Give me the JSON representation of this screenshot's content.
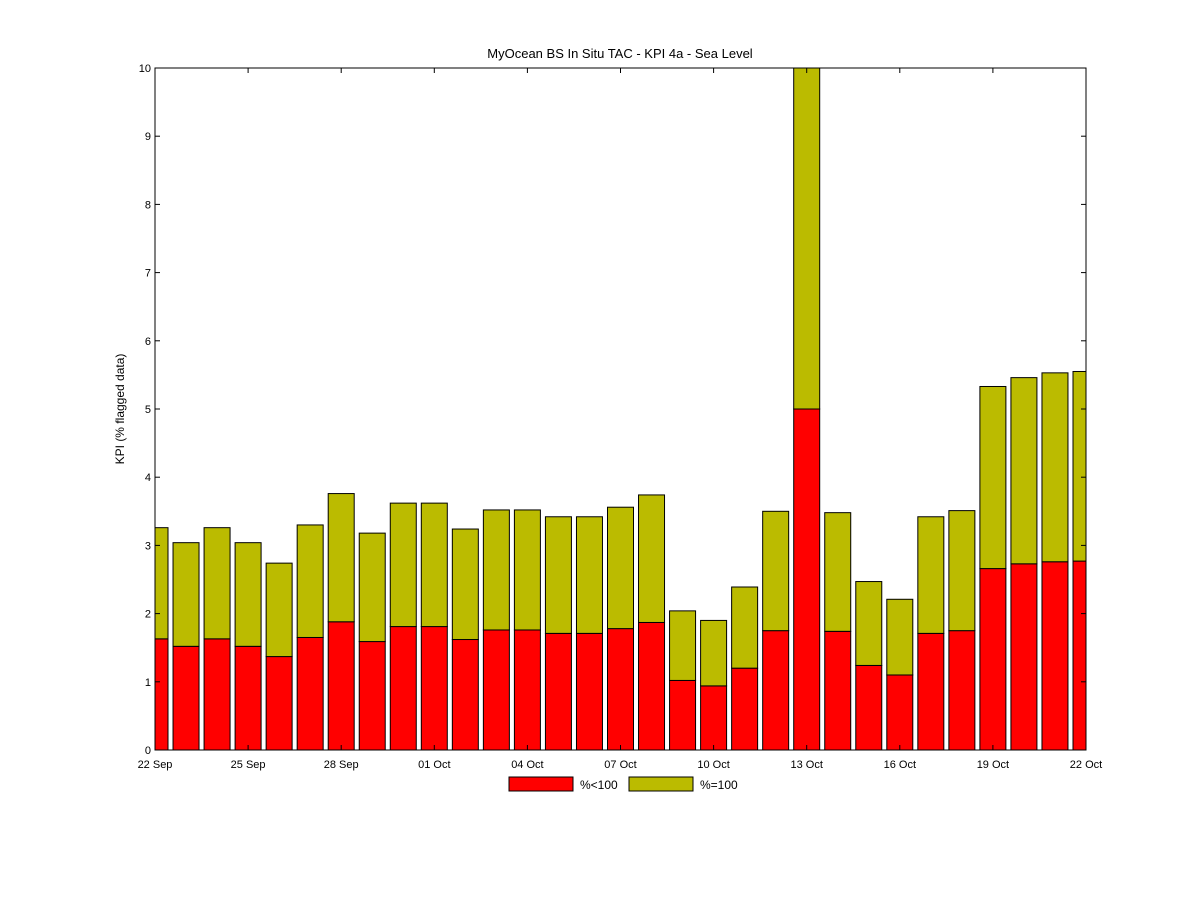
{
  "chart_data": {
    "type": "bar",
    "stacked": true,
    "title": "MyOcean  BS In Situ TAC - KPI 4a - Sea Level",
    "xlabel": "",
    "ylabel": "KPI (% flagged data)",
    "ylim": [
      0,
      10
    ],
    "yticks": [
      0,
      1,
      2,
      3,
      4,
      5,
      6,
      7,
      8,
      9,
      10
    ],
    "xlim": [
      "22 Sep",
      "22 Oct"
    ],
    "xticks": [
      "22 Sep",
      "25 Sep",
      "28 Sep",
      "01 Oct",
      "04 Oct",
      "07 Oct",
      "10 Oct",
      "13 Oct",
      "16 Oct",
      "19 Oct",
      "22 Oct"
    ],
    "grid": false,
    "legend_position": "bottom-center",
    "categories": [
      "22 Sep",
      "23 Sep",
      "24 Sep",
      "25 Sep",
      "26 Sep",
      "27 Sep",
      "28 Sep",
      "29 Sep",
      "30 Sep",
      "01 Oct",
      "02 Oct",
      "03 Oct",
      "04 Oct",
      "05 Oct",
      "06 Oct",
      "07 Oct",
      "08 Oct",
      "09 Oct",
      "10 Oct",
      "11 Oct",
      "12 Oct",
      "13 Oct",
      "14 Oct",
      "15 Oct",
      "16 Oct",
      "17 Oct",
      "18 Oct",
      "19 Oct",
      "20 Oct",
      "21 Oct",
      "22 Oct"
    ],
    "series": [
      {
        "name": "%<100",
        "color": "#ff0000",
        "values": [
          1.63,
          1.52,
          1.63,
          1.52,
          1.37,
          1.65,
          1.88,
          1.59,
          1.81,
          1.81,
          1.62,
          1.76,
          1.76,
          1.71,
          1.71,
          1.78,
          1.87,
          1.02,
          0.94,
          1.2,
          1.75,
          5.0,
          1.74,
          1.24,
          1.1,
          1.71,
          1.75,
          2.66,
          2.73,
          2.76,
          2.77
        ]
      },
      {
        "name": "%=100",
        "color": "#bbbb00",
        "values": [
          1.63,
          1.52,
          1.63,
          1.52,
          1.37,
          1.65,
          1.88,
          1.59,
          1.81,
          1.81,
          1.62,
          1.76,
          1.76,
          1.71,
          1.71,
          1.78,
          1.87,
          1.02,
          0.96,
          1.19,
          1.75,
          5.0,
          1.74,
          1.23,
          1.11,
          1.71,
          1.76,
          2.67,
          2.73,
          2.77,
          2.78
        ]
      }
    ]
  }
}
